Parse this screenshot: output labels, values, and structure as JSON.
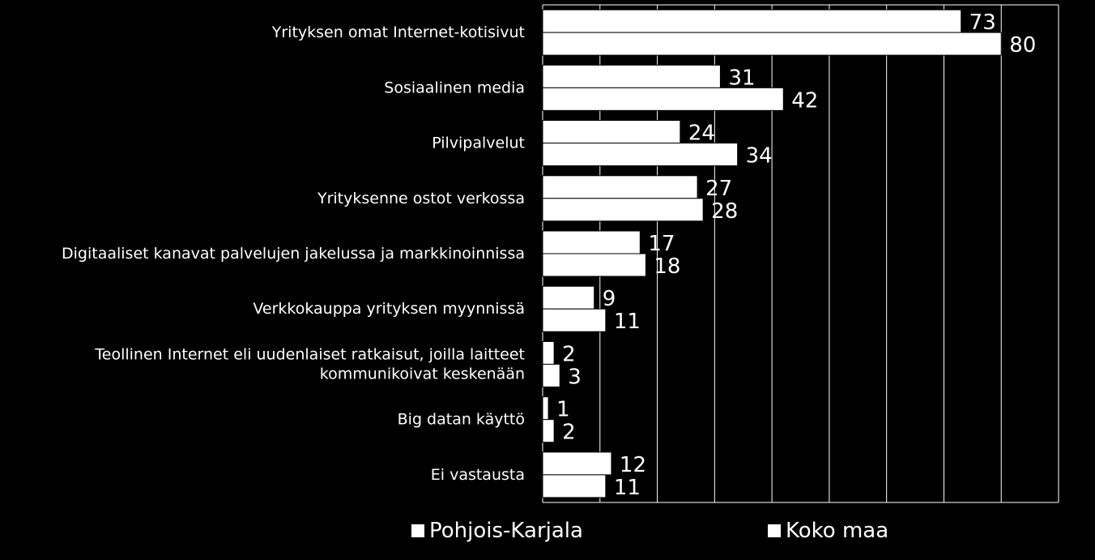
{
  "chart_data": {
    "type": "bar",
    "orientation": "horizontal",
    "categories": [
      [
        "Yrityksen omat Internet-kotisivut"
      ],
      [
        "Sosiaalinen media"
      ],
      [
        "Pilvipalvelut"
      ],
      [
        "Yrityksenne ostot verkossa"
      ],
      [
        "Digitaaliset kanavat palvelujen jakelussa ja markkinoinnissa"
      ],
      [
        "Verkkokauppa yrityksen myynnissä"
      ],
      [
        "Teollinen Internet eli uudenlaiset ratkaisut, joilla laitteet",
        "kommunikoivat keskenään"
      ],
      [
        "Big datan käyttö"
      ],
      [
        "Ei vastausta"
      ]
    ],
    "series": [
      {
        "name": "Pohjois-Karjala",
        "values": [
          73,
          31,
          24,
          27,
          17,
          9,
          2,
          1,
          12
        ]
      },
      {
        "name": "Koko maa",
        "values": [
          80,
          42,
          34,
          28,
          18,
          11,
          3,
          2,
          11
        ]
      }
    ],
    "xlim": [
      0,
      90
    ],
    "grid": true,
    "legend_position": "bottom",
    "colors": {
      "background": "#000000",
      "bar": "#ffffff",
      "bar_edge": "#000000",
      "grid": "#ffffff",
      "text": "#ffffff"
    }
  }
}
